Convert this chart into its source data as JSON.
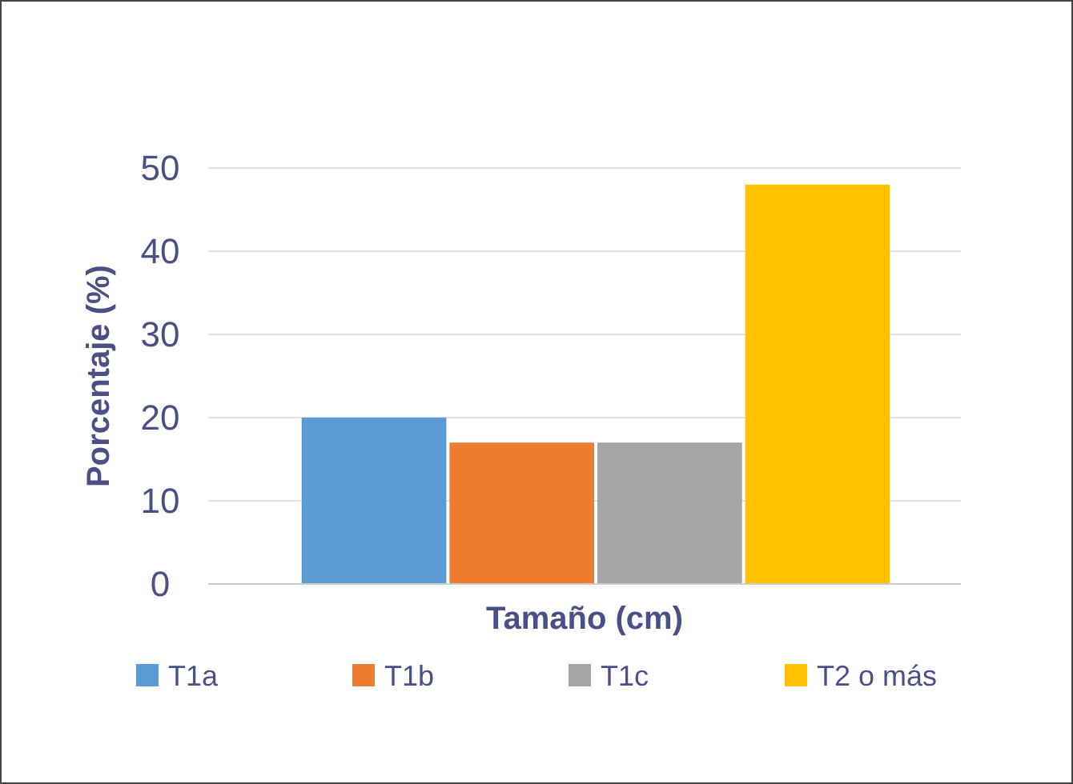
{
  "chart_data": {
    "type": "bar",
    "xlabel": "Tamaño (cm)",
    "ylabel": "Porcentaje (%)",
    "categories": [
      null
    ],
    "series": [
      {
        "name": "T1a",
        "color": "#5b9bd5",
        "values": [
          20
        ]
      },
      {
        "name": "T1b",
        "color": "#ed7d31",
        "values": [
          17
        ]
      },
      {
        "name": "T1c",
        "color": "#a5a5a5",
        "values": [
          17
        ]
      },
      {
        "name": "T2 o más",
        "color": "#ffc000",
        "values": [
          48
        ]
      }
    ],
    "ylim": [
      0,
      50
    ],
    "yticks": [
      0,
      10,
      20,
      30,
      40,
      50
    ],
    "grid": "y",
    "legend": "bottom"
  }
}
